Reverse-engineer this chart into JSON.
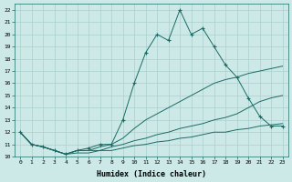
{
  "xlabel": "Humidex (Indice chaleur)",
  "bg_color": "#cce9e7",
  "grid_color": "#aacfcd",
  "line_color": "#1a6b65",
  "xlim": [
    -0.5,
    23.5
  ],
  "ylim": [
    10,
    22.5
  ],
  "xticks": [
    0,
    1,
    2,
    3,
    4,
    5,
    6,
    7,
    8,
    9,
    10,
    11,
    12,
    13,
    14,
    15,
    16,
    17,
    18,
    19,
    20,
    21,
    22,
    23
  ],
  "yticks": [
    10,
    11,
    12,
    13,
    14,
    15,
    16,
    17,
    18,
    19,
    20,
    21,
    22
  ],
  "series": [
    {
      "x": [
        0,
        1,
        2,
        3,
        4,
        5,
        6,
        7,
        8,
        9,
        10,
        11,
        12,
        13,
        14,
        15,
        16,
        17,
        18,
        19,
        20,
        21,
        22,
        23
      ],
      "y": [
        12.0,
        11.0,
        10.8,
        10.5,
        10.2,
        10.5,
        10.7,
        11.0,
        11.0,
        13.0,
        16.0,
        18.5,
        20.0,
        19.5,
        22.0,
        20.0,
        20.5,
        19.0,
        17.5,
        16.5,
        14.8,
        13.3,
        12.5,
        12.5
      ],
      "marker": true
    },
    {
      "x": [
        0,
        1,
        2,
        3,
        4,
        5,
        6,
        7,
        8,
        9,
        10,
        11,
        12,
        13,
        14,
        15,
        16,
        17,
        18,
        19,
        20,
        21,
        22,
        23
      ],
      "y": [
        12.0,
        11.0,
        10.8,
        10.5,
        10.2,
        10.5,
        10.5,
        10.8,
        11.0,
        11.5,
        12.3,
        13.0,
        13.5,
        14.0,
        14.5,
        15.0,
        15.5,
        16.0,
        16.3,
        16.5,
        16.8,
        17.0,
        17.2,
        17.4
      ],
      "marker": false
    },
    {
      "x": [
        0,
        1,
        2,
        3,
        4,
        5,
        6,
        7,
        8,
        9,
        10,
        11,
        12,
        13,
        14,
        15,
        16,
        17,
        18,
        19,
        20,
        21,
        22,
        23
      ],
      "y": [
        12.0,
        11.0,
        10.8,
        10.5,
        10.2,
        10.5,
        10.5,
        10.5,
        10.8,
        11.0,
        11.3,
        11.5,
        11.8,
        12.0,
        12.3,
        12.5,
        12.7,
        13.0,
        13.2,
        13.5,
        14.0,
        14.5,
        14.8,
        15.0
      ],
      "marker": false
    },
    {
      "x": [
        0,
        1,
        2,
        3,
        4,
        5,
        6,
        7,
        8,
        9,
        10,
        11,
        12,
        13,
        14,
        15,
        16,
        17,
        18,
        19,
        20,
        21,
        22,
        23
      ],
      "y": [
        12.0,
        11.0,
        10.8,
        10.5,
        10.2,
        10.3,
        10.3,
        10.5,
        10.5,
        10.7,
        10.9,
        11.0,
        11.2,
        11.3,
        11.5,
        11.6,
        11.8,
        12.0,
        12.0,
        12.2,
        12.3,
        12.5,
        12.6,
        12.7
      ],
      "marker": false
    }
  ]
}
